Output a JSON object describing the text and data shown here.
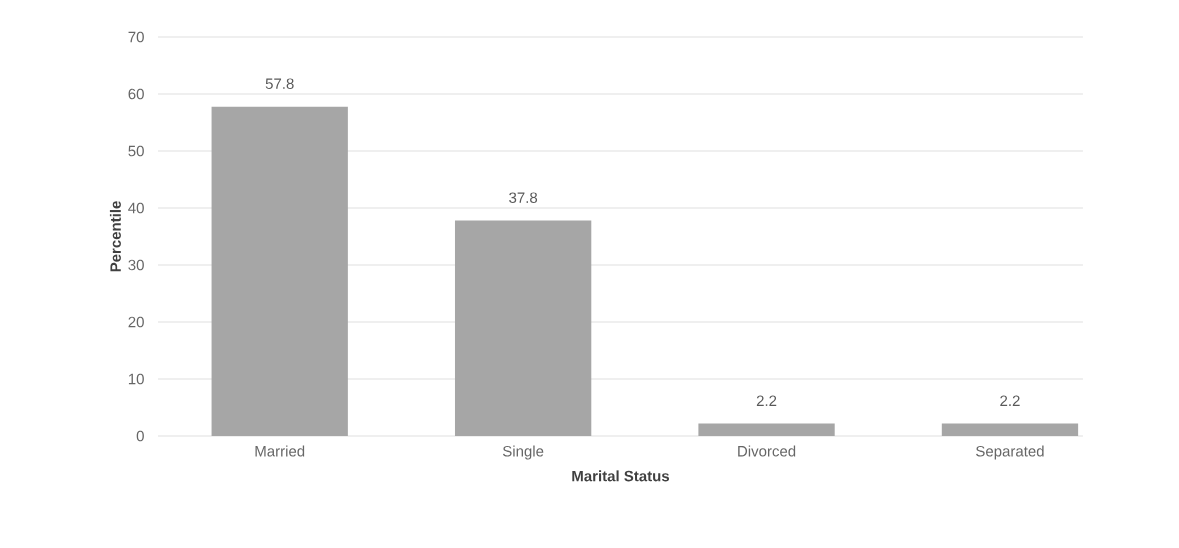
{
  "chart_data": {
    "type": "bar",
    "xlabel": "Marital Status",
    "ylabel": "Percentile",
    "categories": [
      "Married",
      "Single",
      "Divorced",
      "Separated"
    ],
    "values": [
      57.8,
      37.8,
      2.2,
      2.2
    ],
    "color": "#a6a6a6",
    "ylim": [
      0,
      70
    ],
    "yticks": [
      0,
      10,
      20,
      30,
      40,
      50,
      60,
      70
    ],
    "grid": "y",
    "data_labels": true
  }
}
